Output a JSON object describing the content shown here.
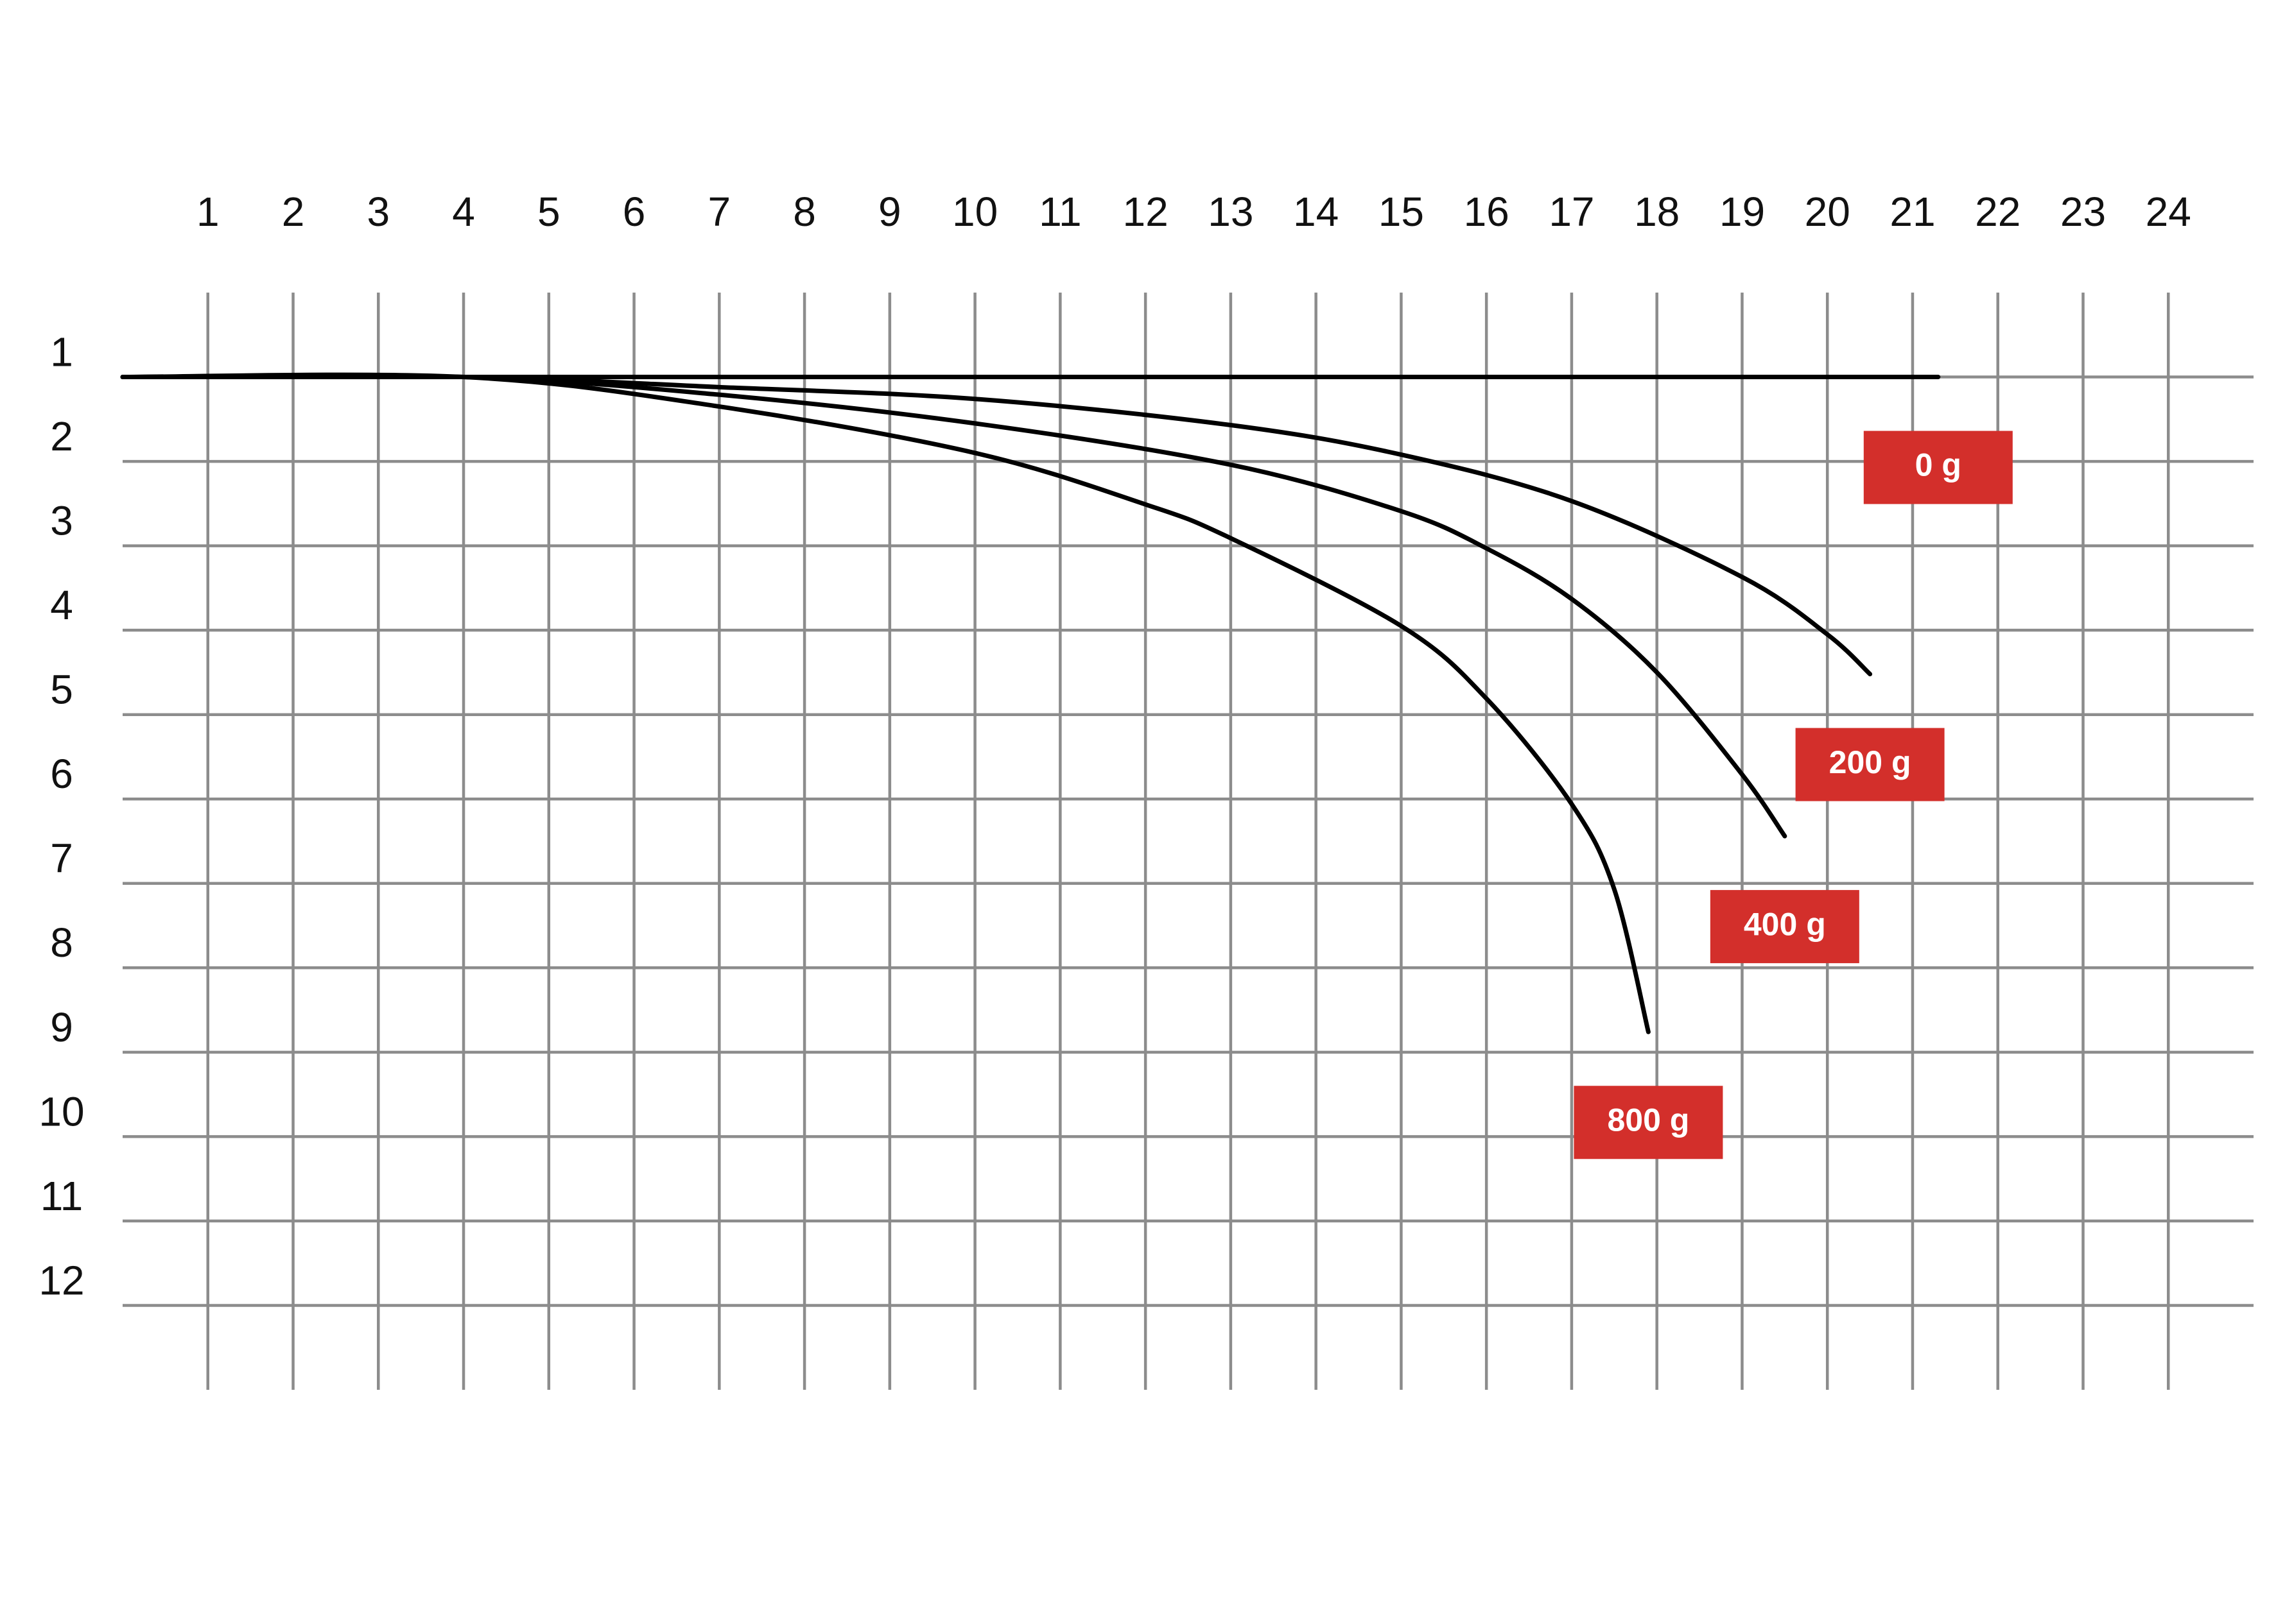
{
  "chart_data": {
    "type": "line",
    "xlim": [
      0,
      25
    ],
    "ylim": [
      0,
      13
    ],
    "y_inverted": true,
    "xticks": [
      1,
      2,
      3,
      4,
      5,
      6,
      7,
      8,
      9,
      10,
      11,
      12,
      13,
      14,
      15,
      16,
      17,
      18,
      19,
      20,
      21,
      22,
      23,
      24
    ],
    "yticks": [
      1,
      2,
      3,
      4,
      5,
      6,
      7,
      8,
      9,
      10,
      11,
      12
    ],
    "grid": true,
    "series": [
      {
        "name": "0 g",
        "color": "#000000",
        "x": [
          0,
          21.3
        ],
        "values": [
          1.0,
          1.0
        ]
      },
      {
        "name": "200 g",
        "color": "#000000",
        "x": [
          0,
          4,
          7,
          10,
          13,
          15,
          17,
          19,
          20,
          20.5
        ],
        "values": [
          1.0,
          1.0,
          1.12,
          1.26,
          1.57,
          1.92,
          2.47,
          3.37,
          4.05,
          4.52
        ]
      },
      {
        "name": "400 g",
        "color": "#000000",
        "x": [
          0,
          4,
          7,
          10,
          13,
          15,
          16,
          17,
          18,
          19,
          19.5
        ],
        "values": [
          1.0,
          1.0,
          1.21,
          1.55,
          2.04,
          2.59,
          3.03,
          3.63,
          4.5,
          5.71,
          6.44
        ]
      },
      {
        "name": "800 g",
        "color": "#000000",
        "x": [
          0,
          4,
          7,
          10,
          12,
          13,
          15,
          16,
          17,
          17.5,
          17.9
        ],
        "values": [
          1.0,
          1.0,
          1.35,
          1.9,
          2.51,
          2.91,
          3.95,
          4.81,
          6.06,
          7.07,
          8.76
        ]
      }
    ],
    "label_color": "#d32f2b"
  }
}
